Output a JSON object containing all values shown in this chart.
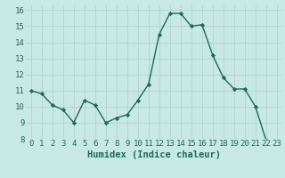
{
  "x": [
    0,
    1,
    2,
    3,
    4,
    5,
    6,
    7,
    8,
    9,
    10,
    11,
    12,
    13,
    14,
    15,
    16,
    17,
    18,
    19,
    20,
    21,
    22,
    23
  ],
  "y": [
    11.0,
    10.8,
    10.1,
    9.8,
    9.0,
    10.4,
    10.1,
    9.0,
    9.3,
    9.5,
    10.4,
    11.4,
    14.5,
    15.8,
    15.8,
    15.0,
    15.1,
    13.2,
    11.8,
    11.1,
    11.1,
    10.0,
    7.9,
    7.8
  ],
  "line_color": "#1a6b5a",
  "marker": "D",
  "marker_size": 2.2,
  "linewidth": 1.0,
  "bg_color": "#c8e8e5",
  "grid_color_major": "#b0ceca",
  "grid_color_minor": "#daecea",
  "axis_label_color": "#1a6b5a",
  "tick_label_color": "#1a6b5a",
  "xlabel": "Humidex (Indice chaleur)",
  "xlabel_fontsize": 7.5,
  "tick_fontsize": 6.5,
  "xlim": [
    -0.5,
    23.5
  ],
  "ylim": [
    8,
    16.3
  ],
  "yticks": [
    8,
    9,
    10,
    11,
    12,
    13,
    14,
    15,
    16
  ],
  "xticks": [
    0,
    1,
    2,
    3,
    4,
    5,
    6,
    7,
    8,
    9,
    10,
    11,
    12,
    13,
    14,
    15,
    16,
    17,
    18,
    19,
    20,
    21,
    22,
    23
  ]
}
